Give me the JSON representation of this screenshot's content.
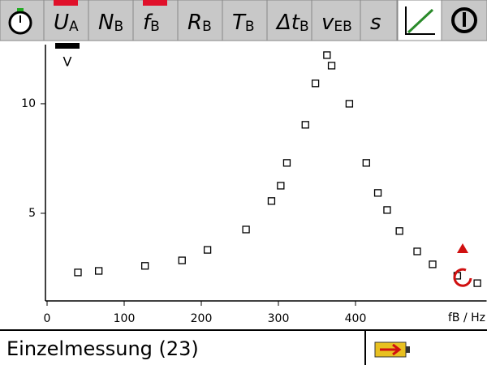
{
  "toolbar": [
    {
      "symbol": "U",
      "sub": "A",
      "active": true
    },
    {
      "symbol": "N",
      "sub": "B",
      "active": false
    },
    {
      "symbol": "f",
      "sub": "B",
      "active": true
    },
    {
      "symbol": "R",
      "sub": "B",
      "active": false
    },
    {
      "symbol": "T",
      "sub": "B",
      "active": false
    },
    {
      "symbol": "Δt",
      "sub": "B",
      "active": false
    },
    {
      "symbol": "v",
      "sub": "EB",
      "active": false
    },
    {
      "symbol": "s",
      "active": false
    }
  ],
  "unit_indicator": "V",
  "chart_data": {
    "type": "scatter",
    "x_label": "fB / Hz",
    "color": "#000000",
    "xlim": [
      0,
      570
    ],
    "xticks": [
      0,
      100,
      200,
      300,
      400
    ],
    "ylim": [
      1,
      12.7
    ],
    "yticks": [
      5,
      10
    ],
    "x": [
      40,
      67,
      127,
      175,
      208,
      258,
      291,
      303,
      311,
      335,
      348,
      363,
      369,
      392,
      414,
      429,
      441,
      457,
      480,
      500,
      532,
      558
    ],
    "values": [
      2.3,
      2.37,
      2.6,
      2.85,
      3.33,
      4.26,
      5.56,
      6.26,
      7.3,
      9.04,
      10.93,
      12.22,
      11.74,
      10.0,
      7.3,
      5.93,
      5.15,
      4.19,
      3.26,
      2.67,
      2.15,
      1.81
    ]
  },
  "status": "Einzelmessung (23)"
}
